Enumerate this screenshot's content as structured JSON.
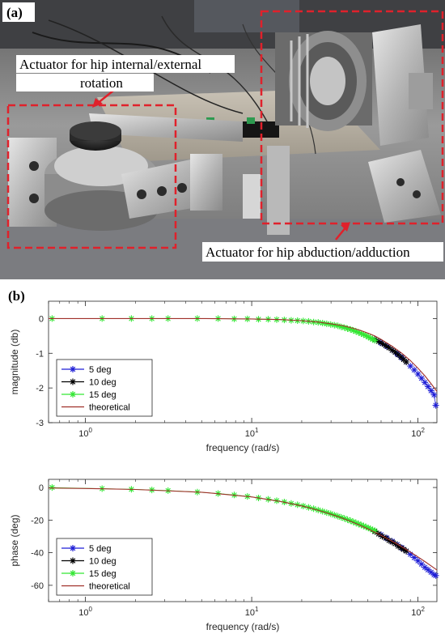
{
  "panel_a": {
    "tag": "(a)",
    "callout_hip_rotation": [
      "Actuator for hip internal/external",
      "rotation"
    ],
    "callout_hip_abduction": "Actuator for hip abduction/adduction"
  },
  "panel_b": {
    "tag": "(b)"
  },
  "colors": {
    "series_5deg": "#1f1fd6",
    "series_10deg": "#000000",
    "series_15deg": "#33e633",
    "theoretical": "#a0302a",
    "callout_box": "#e0212b"
  },
  "chart_data": [
    {
      "type": "line",
      "xscale": "log",
      "xlim": [
        0.6,
        130
      ],
      "ylim": [
        -3,
        0.5
      ],
      "xlabel": "frequency (rad/s)",
      "ylabel": "magnitude (db)",
      "xticks": [
        1,
        10,
        100
      ],
      "xtick_labels": [
        "10^0",
        "10^1",
        "10^2"
      ],
      "yticks": [
        0,
        -1,
        -2,
        -3
      ],
      "ytick_labels": [
        "0",
        "-1",
        "-2",
        "-3"
      ],
      "grid": false,
      "legend_position": "lower-left",
      "series": [
        {
          "name": "5 deg",
          "marker": "*",
          "color_key": "series_5deg",
          "x": [
            55,
            60,
            65,
            70,
            75,
            80,
            85,
            90,
            95,
            100,
            105,
            110,
            115,
            120,
            125,
            128
          ],
          "y": [
            -0.6,
            -0.7,
            -0.8,
            -0.91,
            -1.02,
            -1.13,
            -1.25,
            -1.37,
            -1.48,
            -1.6,
            -1.72,
            -1.84,
            -1.96,
            -2.08,
            -2.2,
            -2.5
          ]
        },
        {
          "name": "10 deg",
          "marker": "*",
          "color_key": "series_10deg",
          "x": [
            55,
            58,
            61,
            64,
            67,
            70,
            73,
            76,
            79,
            82,
            85
          ],
          "y": [
            -0.6,
            -0.66,
            -0.72,
            -0.78,
            -0.84,
            -0.91,
            -0.97,
            -1.04,
            -1.11,
            -1.18,
            -1.25
          ]
        },
        {
          "name": "15 deg",
          "marker": "*",
          "color_key": "series_15deg",
          "x": [
            0.63,
            1.26,
            1.89,
            2.51,
            3.14,
            4.71,
            6.28,
            7.85,
            9.42,
            10.99,
            12.57,
            14.14,
            15.71,
            17.28,
            18.85,
            20.42,
            21.99,
            23.56,
            25.13,
            26.7,
            28.27,
            29.85,
            31.42,
            32.99,
            34.56,
            36.13,
            37.7,
            39.27,
            40.84,
            42.41,
            43.98,
            45.55,
            47.12,
            48.69,
            50.27,
            51.84,
            53.41,
            54.98
          ],
          "y": [
            0,
            0,
            0,
            0,
            0,
            0,
            0,
            -0.01,
            -0.01,
            -0.02,
            -0.02,
            -0.03,
            -0.04,
            -0.05,
            -0.06,
            -0.07,
            -0.08,
            -0.1,
            -0.11,
            -0.13,
            -0.15,
            -0.17,
            -0.19,
            -0.21,
            -0.24,
            -0.26,
            -0.29,
            -0.31,
            -0.34,
            -0.37,
            -0.4,
            -0.43,
            -0.46,
            -0.49,
            -0.53,
            -0.56,
            -0.6,
            -0.63
          ]
        },
        {
          "name": "theoretical",
          "marker": "",
          "color_key": "theoretical",
          "x": [
            0.6,
            1,
            2,
            5,
            10,
            15,
            20,
            25,
            30,
            35,
            40,
            45,
            50,
            55,
            60,
            70,
            80,
            90,
            100,
            110,
            120,
            130
          ],
          "y": [
            0,
            0,
            0,
            0,
            -0.01,
            -0.03,
            -0.06,
            -0.1,
            -0.15,
            -0.2,
            -0.27,
            -0.34,
            -0.42,
            -0.5,
            -0.6,
            -0.8,
            -1.0,
            -1.21,
            -1.43,
            -1.65,
            -1.88,
            -2.1
          ]
        }
      ]
    },
    {
      "type": "line",
      "xscale": "log",
      "xlim": [
        0.6,
        130
      ],
      "ylim": [
        -70,
        5
      ],
      "xlabel": "frequency (rad/s)",
      "ylabel": "phase (deg)",
      "xticks": [
        1,
        10,
        100
      ],
      "xtick_labels": [
        "10^0",
        "10^1",
        "10^2"
      ],
      "yticks": [
        0,
        -20,
        -40,
        -60
      ],
      "ytick_labels": [
        "0",
        "-20",
        "-40",
        "-60"
      ],
      "grid": false,
      "legend_position": "lower-left",
      "series": [
        {
          "name": "5 deg",
          "marker": "*",
          "color_key": "series_5deg",
          "x": [
            60,
            65,
            70,
            75,
            80,
            85,
            90,
            95,
            100,
            105,
            110,
            115,
            120,
            125,
            128
          ],
          "y": [
            -29,
            -31,
            -33,
            -35,
            -37,
            -39,
            -41,
            -43,
            -45,
            -47,
            -49,
            -50.5,
            -52,
            -53.5,
            -54
          ]
        },
        {
          "name": "10 deg",
          "marker": "*",
          "color_key": "series_10deg",
          "x": [
            55,
            58,
            61,
            64,
            67,
            70,
            73,
            76,
            79,
            82,
            85
          ],
          "y": [
            -27,
            -28.5,
            -30,
            -31,
            -32.5,
            -33.5,
            -34.5,
            -36,
            -37,
            -38,
            -39
          ]
        },
        {
          "name": "15 deg",
          "marker": "*",
          "color_key": "series_15deg",
          "x": [
            0.63,
            1.26,
            1.89,
            2.51,
            3.14,
            4.71,
            6.28,
            7.85,
            9.42,
            10.99,
            12.57,
            14.14,
            15.71,
            17.28,
            18.85,
            20.42,
            21.99,
            23.56,
            25.13,
            26.7,
            28.27,
            29.85,
            31.42,
            32.99,
            34.56,
            36.13,
            37.7,
            39.27,
            40.84,
            42.41,
            43.98,
            45.55,
            47.12,
            48.69,
            50.27,
            51.84,
            53.41,
            54.98
          ],
          "y": [
            0,
            -0.7,
            -1.1,
            -1.5,
            -1.9,
            -2.8,
            -3.7,
            -4.6,
            -5.5,
            -6.4,
            -7.2,
            -8.1,
            -8.9,
            -9.8,
            -10.6,
            -11.4,
            -12.2,
            -13,
            -13.8,
            -14.6,
            -15.4,
            -16.1,
            -16.9,
            -17.6,
            -18.3,
            -19,
            -19.7,
            -20.4,
            -21.1,
            -21.7,
            -22.4,
            -23,
            -23.6,
            -24.2,
            -24.8,
            -25.4,
            -26,
            -26.5
          ]
        },
        {
          "name": "theoretical",
          "marker": "",
          "color_key": "theoretical",
          "x": [
            0.6,
            1,
            2,
            5,
            10,
            15,
            20,
            25,
            30,
            35,
            40,
            45,
            50,
            55,
            60,
            70,
            80,
            90,
            100,
            110,
            120,
            130
          ],
          "y": [
            -0.3,
            -0.6,
            -1.2,
            -2.9,
            -5.8,
            -8.6,
            -11.3,
            -13.9,
            -16.4,
            -18.8,
            -21.1,
            -23.3,
            -25.4,
            -27.4,
            -29.3,
            -33,
            -36.4,
            -39.6,
            -42.6,
            -45.4,
            -48.1,
            -50.6
          ]
        }
      ]
    }
  ]
}
